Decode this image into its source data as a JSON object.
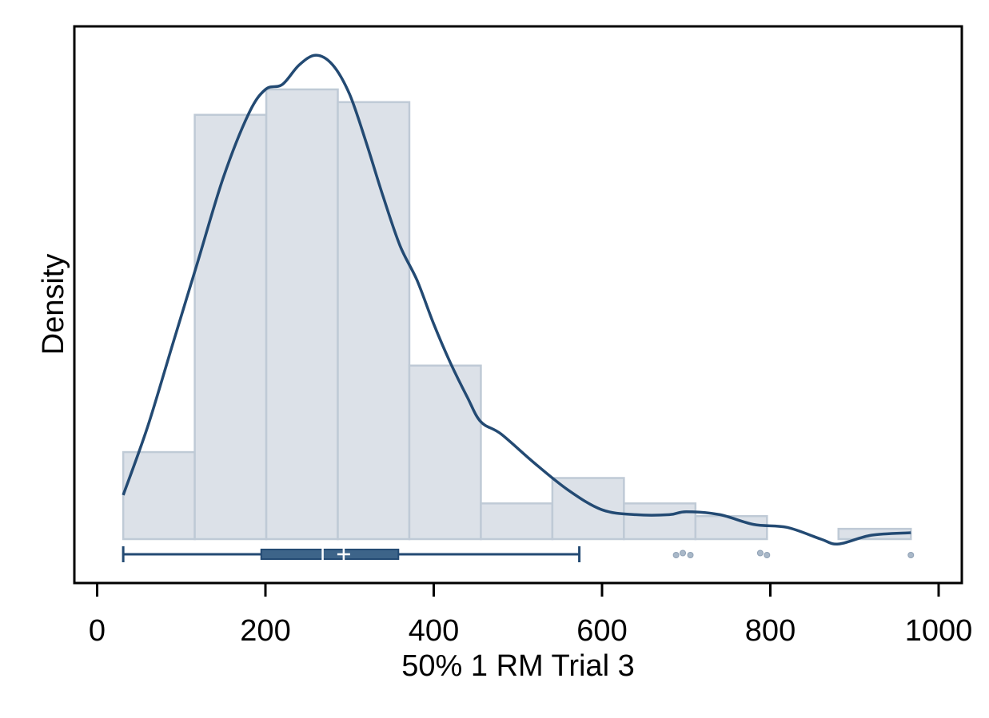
{
  "chart_data": {
    "type": "histogram",
    "xlabel": "50% 1 RM Trial 3",
    "ylabel": "Density",
    "xlim": [
      -30,
      1030
    ],
    "ylim": [
      0,
      1.0
    ],
    "x_ticks": [
      0,
      200,
      400,
      600,
      800,
      1000
    ],
    "x_tick_labels": [
      "0",
      "200",
      "400",
      "600",
      "800",
      "1000"
    ],
    "grid": false,
    "legend": "none",
    "histogram": {
      "bin_edges": [
        31,
        116,
        201,
        286,
        371,
        456,
        541,
        626,
        711,
        796,
        881,
        967
      ],
      "heights": [
        0.178,
        0.868,
        0.92,
        0.894,
        0.355,
        0.073,
        0.125,
        0.073,
        0.047,
        0.0,
        0.021
      ]
    },
    "density_curve": {
      "x": [
        31,
        60,
        90,
        120,
        150,
        180,
        200,
        220,
        240,
        260,
        280,
        300,
        320,
        340,
        360,
        380,
        400,
        420,
        440,
        456,
        480,
        520,
        560,
        600,
        640,
        680,
        700,
        740,
        780,
        820,
        860,
        881,
        920,
        967
      ],
      "y": [
        0.09,
        0.23,
        0.4,
        0.57,
        0.74,
        0.87,
        0.92,
        0.93,
        0.97,
        0.99,
        0.97,
        0.91,
        0.81,
        0.7,
        0.6,
        0.53,
        0.44,
        0.36,
        0.29,
        0.24,
        0.215,
        0.155,
        0.1,
        0.06,
        0.05,
        0.05,
        0.056,
        0.05,
        0.03,
        0.024,
        0.0,
        -0.01,
        0.008,
        0.013
      ]
    },
    "boxplot": {
      "whisker_low": 31,
      "q1": 195,
      "median": 268,
      "mean": 293,
      "q3": 358,
      "whisker_high": 573,
      "outliers": [
        688,
        696,
        705,
        788,
        796,
        967
      ]
    },
    "colors": {
      "bar_fill": "#dce1e8",
      "bar_stroke": "#bfcad6",
      "curve": "#234a73",
      "box": "#3d6489",
      "outlier": "#a9b8c8",
      "frame": "#000000"
    }
  }
}
